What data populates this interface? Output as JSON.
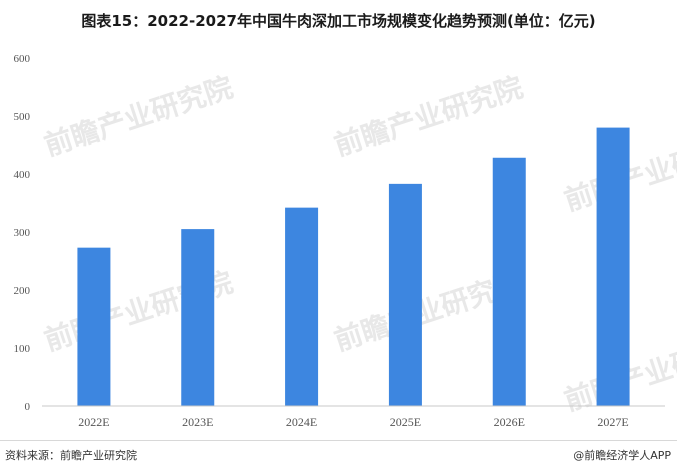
{
  "title": "图表15：2022-2027年中国牛肉深加工市场规模变化趋势预测(单位：亿元)",
  "source": "资料来源：前瞻产业研究院",
  "brand": "@前瞻经济学人APP",
  "watermark": "前瞻产业研究院",
  "colors": {
    "bar": "#3d86e0",
    "axis": "#c8c8c8",
    "tick_text": "#555555"
  },
  "chart_data": {
    "type": "bar",
    "categories": [
      "2022E",
      "2023E",
      "2024E",
      "2025E",
      "2026E",
      "2027E"
    ],
    "values": [
      273,
      305,
      342,
      383,
      428,
      480
    ],
    "ylim": [
      0,
      600
    ],
    "yticks": [
      0,
      100,
      200,
      300,
      400,
      500,
      600
    ],
    "grid": false,
    "legend": "none"
  }
}
